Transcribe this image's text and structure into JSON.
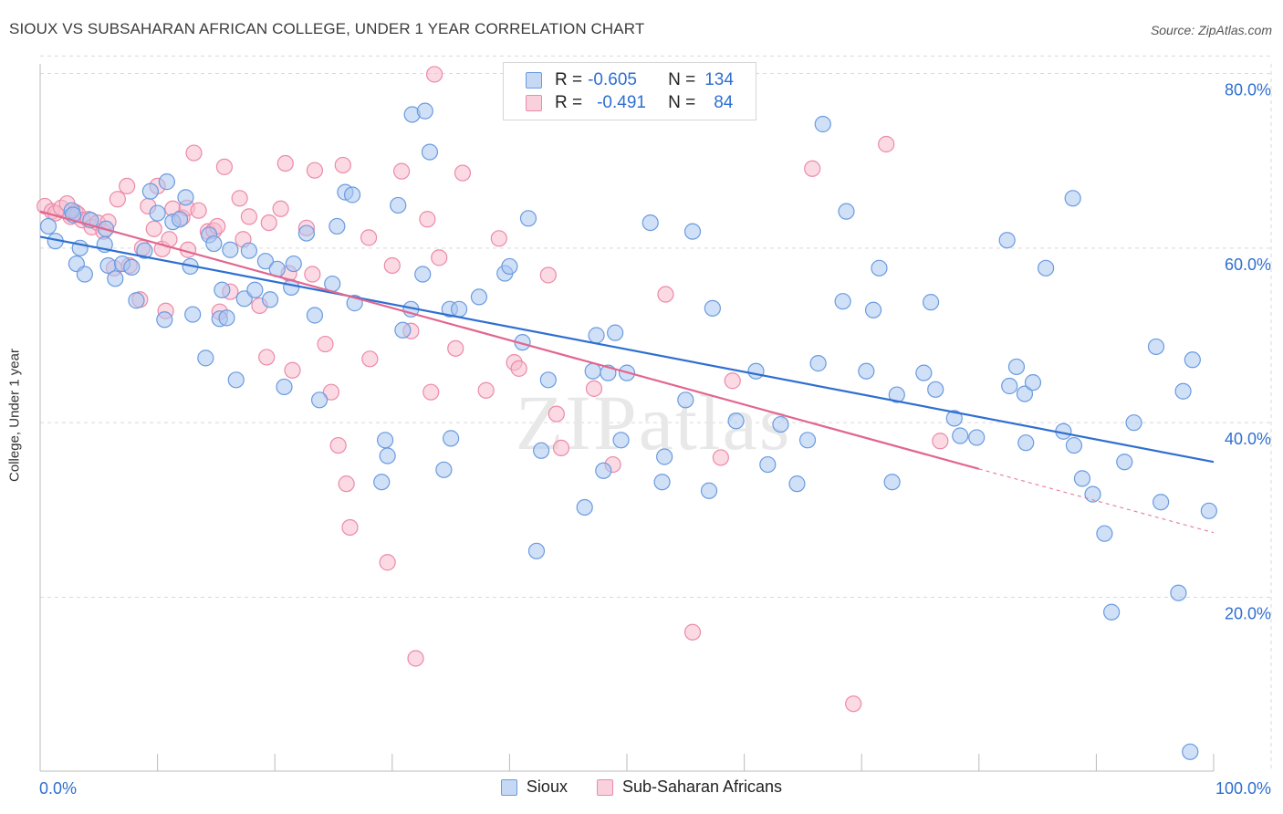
{
  "title": "SIOUX VS SUBSAHARAN AFRICAN COLLEGE, UNDER 1 YEAR CORRELATION CHART",
  "source": "Source: ZipAtlas.com",
  "watermark": "ZIPatlas",
  "legend": {
    "sioux": {
      "label": "R =",
      "r": "-0.605",
      "n_label": "N =",
      "n": "134"
    },
    "subsaharan": {
      "label": "R =",
      "r": "-0.491",
      "n_label": "N =",
      "n": "84"
    }
  },
  "colors": {
    "sioux_fill": "#a9c6f0",
    "sioux_stroke": "#6a9be0",
    "sioux_line": "#2f6fd1",
    "ss_fill": "#f7bccd",
    "ss_stroke": "#ec8aa8",
    "ss_line": "#e2668f",
    "grid": "#d9d9d9",
    "tick_text": "#2f6fd1"
  },
  "chart_data": {
    "type": "scatter",
    "title": "SIOUX VS SUBSAHARAN AFRICAN COLLEGE, UNDER 1 YEAR CORRELATION CHART",
    "xlabel": "",
    "ylabel": "College, Under 1 year",
    "xlim": [
      0,
      100
    ],
    "ylim": [
      0,
      82
    ],
    "x_tick_labels": [
      "0.0%",
      "100.0%"
    ],
    "y_ticks": [
      20,
      40,
      60,
      80
    ],
    "y_tick_labels": [
      "20.0%",
      "40.0%",
      "60.0%",
      "80.0%"
    ],
    "grid": true,
    "legend_position": "top-center",
    "series": [
      {
        "name": "Sioux",
        "trend": {
          "x": [
            0,
            100
          ],
          "y": [
            61.3,
            35.5
          ]
        },
        "points": [
          [
            0.7,
            62.5
          ],
          [
            1.3,
            60.8
          ],
          [
            2.7,
            64.3
          ],
          [
            2.8,
            63.8
          ],
          [
            3.1,
            58.2
          ],
          [
            3.4,
            60.0
          ],
          [
            3.8,
            57.0
          ],
          [
            4.3,
            63.2
          ],
          [
            5.5,
            60.4
          ],
          [
            5.6,
            62.2
          ],
          [
            5.8,
            58.0
          ],
          [
            6.4,
            56.5
          ],
          [
            7.0,
            58.2
          ],
          [
            7.8,
            57.8
          ],
          [
            8.2,
            54.0
          ],
          [
            8.9,
            59.7
          ],
          [
            9.4,
            66.5
          ],
          [
            10.0,
            64.0
          ],
          [
            10.6,
            51.8
          ],
          [
            10.8,
            67.6
          ],
          [
            11.3,
            63.0
          ],
          [
            11.9,
            63.3
          ],
          [
            12.4,
            65.8
          ],
          [
            12.8,
            57.9
          ],
          [
            13.0,
            52.4
          ],
          [
            14.1,
            47.4
          ],
          [
            14.4,
            61.5
          ],
          [
            14.8,
            60.5
          ],
          [
            15.3,
            51.9
          ],
          [
            15.5,
            55.2
          ],
          [
            15.9,
            52.0
          ],
          [
            16.2,
            59.8
          ],
          [
            16.7,
            44.9
          ],
          [
            17.4,
            54.2
          ],
          [
            17.8,
            59.7
          ],
          [
            18.3,
            55.2
          ],
          [
            19.2,
            58.5
          ],
          [
            19.6,
            54.1
          ],
          [
            20.2,
            57.6
          ],
          [
            20.8,
            44.1
          ],
          [
            21.4,
            55.5
          ],
          [
            21.6,
            58.2
          ],
          [
            22.7,
            61.7
          ],
          [
            23.4,
            52.3
          ],
          [
            23.8,
            42.6
          ],
          [
            24.9,
            55.9
          ],
          [
            25.3,
            62.5
          ],
          [
            26.0,
            66.4
          ],
          [
            26.6,
            66.1
          ],
          [
            26.8,
            53.7
          ],
          [
            29.1,
            33.2
          ],
          [
            29.4,
            38.0
          ],
          [
            29.6,
            36.2
          ],
          [
            30.5,
            64.9
          ],
          [
            30.9,
            50.6
          ],
          [
            31.6,
            53.0
          ],
          [
            31.7,
            75.3
          ],
          [
            32.6,
            57.0
          ],
          [
            32.8,
            75.7
          ],
          [
            33.2,
            71.0
          ],
          [
            34.4,
            34.6
          ],
          [
            34.9,
            53.0
          ],
          [
            35.0,
            38.2
          ],
          [
            35.7,
            53.0
          ],
          [
            37.4,
            54.4
          ],
          [
            39.6,
            57.1
          ],
          [
            40.0,
            57.9
          ],
          [
            41.1,
            49.2
          ],
          [
            41.6,
            63.4
          ],
          [
            42.3,
            25.3
          ],
          [
            42.7,
            36.8
          ],
          [
            43.3,
            44.9
          ],
          [
            46.4,
            30.3
          ],
          [
            47.1,
            45.9
          ],
          [
            47.4,
            50.0
          ],
          [
            48.0,
            34.5
          ],
          [
            48.4,
            45.7
          ],
          [
            49.0,
            50.3
          ],
          [
            49.5,
            38.0
          ],
          [
            50.0,
            45.7
          ],
          [
            52.0,
            62.9
          ],
          [
            53.0,
            33.2
          ],
          [
            53.2,
            36.1
          ],
          [
            55.0,
            42.6
          ],
          [
            55.6,
            61.9
          ],
          [
            57.0,
            32.2
          ],
          [
            57.3,
            53.1
          ],
          [
            59.3,
            40.2
          ],
          [
            61.0,
            45.9
          ],
          [
            62.0,
            35.2
          ],
          [
            63.1,
            39.8
          ],
          [
            64.5,
            33.0
          ],
          [
            65.4,
            38.0
          ],
          [
            66.3,
            46.8
          ],
          [
            66.7,
            74.2
          ],
          [
            68.4,
            53.9
          ],
          [
            68.7,
            64.2
          ],
          [
            70.4,
            45.9
          ],
          [
            71.0,
            52.9
          ],
          [
            71.5,
            57.7
          ],
          [
            72.6,
            33.2
          ],
          [
            73.0,
            43.2
          ],
          [
            75.3,
            45.7
          ],
          [
            75.9,
            53.8
          ],
          [
            76.3,
            43.8
          ],
          [
            77.9,
            40.5
          ],
          [
            78.4,
            38.5
          ],
          [
            79.8,
            38.3
          ],
          [
            82.4,
            60.9
          ],
          [
            82.6,
            44.2
          ],
          [
            83.2,
            46.4
          ],
          [
            83.9,
            43.3
          ],
          [
            84.0,
            37.7
          ],
          [
            84.6,
            44.6
          ],
          [
            85.7,
            57.7
          ],
          [
            87.2,
            39.0
          ],
          [
            88.0,
            65.7
          ],
          [
            88.1,
            37.4
          ],
          [
            88.8,
            33.6
          ],
          [
            89.7,
            31.8
          ],
          [
            90.7,
            27.3
          ],
          [
            91.3,
            18.3
          ],
          [
            92.4,
            35.5
          ],
          [
            93.2,
            40.0
          ],
          [
            95.1,
            48.7
          ],
          [
            95.5,
            30.9
          ],
          [
            97.0,
            20.5
          ],
          [
            97.4,
            43.6
          ],
          [
            98.0,
            2.3
          ],
          [
            98.2,
            47.2
          ],
          [
            99.6,
            29.9
          ]
        ]
      },
      {
        "name": "Sub-Saharan Africans",
        "trend": {
          "x": [
            0,
            80
          ],
          "y": [
            64.2,
            34.7
          ]
        },
        "trend_extension": {
          "x": [
            80,
            100
          ],
          "y": [
            34.7,
            27.4
          ]
        },
        "points": [
          [
            0.4,
            64.8
          ],
          [
            1.0,
            64.2
          ],
          [
            1.3,
            64.0
          ],
          [
            1.8,
            64.6
          ],
          [
            2.3,
            65.1
          ],
          [
            2.6,
            63.6
          ],
          [
            3.0,
            64.1
          ],
          [
            3.2,
            63.9
          ],
          [
            3.6,
            63.2
          ],
          [
            4.1,
            63.3
          ],
          [
            4.4,
            62.4
          ],
          [
            4.9,
            62.9
          ],
          [
            5.4,
            61.9
          ],
          [
            5.8,
            63.0
          ],
          [
            6.3,
            57.7
          ],
          [
            6.6,
            65.6
          ],
          [
            7.4,
            67.1
          ],
          [
            7.6,
            58.0
          ],
          [
            8.5,
            54.1
          ],
          [
            8.7,
            60.0
          ],
          [
            9.2,
            64.8
          ],
          [
            9.7,
            62.2
          ],
          [
            10.0,
            67.1
          ],
          [
            10.4,
            59.9
          ],
          [
            10.7,
            52.8
          ],
          [
            11.0,
            61.0
          ],
          [
            11.3,
            64.5
          ],
          [
            12.1,
            63.5
          ],
          [
            12.5,
            64.6
          ],
          [
            12.6,
            59.8
          ],
          [
            13.1,
            70.9
          ],
          [
            13.5,
            64.3
          ],
          [
            14.3,
            61.9
          ],
          [
            14.8,
            62.0
          ],
          [
            15.1,
            62.5
          ],
          [
            15.3,
            52.7
          ],
          [
            15.7,
            69.3
          ],
          [
            16.2,
            55.0
          ],
          [
            17.0,
            65.7
          ],
          [
            17.3,
            61.0
          ],
          [
            17.8,
            63.6
          ],
          [
            18.7,
            53.4
          ],
          [
            19.3,
            47.5
          ],
          [
            19.5,
            62.9
          ],
          [
            20.5,
            64.5
          ],
          [
            20.9,
            69.7
          ],
          [
            21.2,
            57.1
          ],
          [
            21.5,
            46.0
          ],
          [
            22.7,
            62.3
          ],
          [
            23.2,
            57.0
          ],
          [
            23.4,
            68.9
          ],
          [
            24.3,
            49.0
          ],
          [
            24.8,
            43.5
          ],
          [
            25.4,
            37.4
          ],
          [
            25.8,
            69.5
          ],
          [
            26.1,
            33.0
          ],
          [
            26.4,
            28.0
          ],
          [
            28.0,
            61.2
          ],
          [
            28.1,
            47.3
          ],
          [
            29.6,
            24.0
          ],
          [
            30.0,
            58.0
          ],
          [
            30.8,
            68.8
          ],
          [
            31.6,
            50.5
          ],
          [
            32.0,
            13.0
          ],
          [
            33.0,
            63.3
          ],
          [
            33.3,
            43.5
          ],
          [
            33.6,
            79.9
          ],
          [
            34.0,
            58.9
          ],
          [
            35.4,
            48.5
          ],
          [
            36.0,
            68.6
          ],
          [
            38.0,
            43.7
          ],
          [
            39.1,
            61.1
          ],
          [
            40.4,
            46.9
          ],
          [
            40.8,
            46.2
          ],
          [
            43.3,
            56.9
          ],
          [
            44.0,
            41.0
          ],
          [
            44.4,
            37.1
          ],
          [
            47.2,
            43.9
          ],
          [
            48.8,
            35.2
          ],
          [
            53.3,
            54.7
          ],
          [
            55.6,
            16.0
          ],
          [
            58.0,
            36.0
          ],
          [
            59.0,
            44.8
          ],
          [
            65.8,
            69.1
          ],
          [
            69.3,
            7.8
          ],
          [
            72.1,
            71.9
          ],
          [
            76.7,
            37.9
          ]
        ]
      }
    ]
  }
}
